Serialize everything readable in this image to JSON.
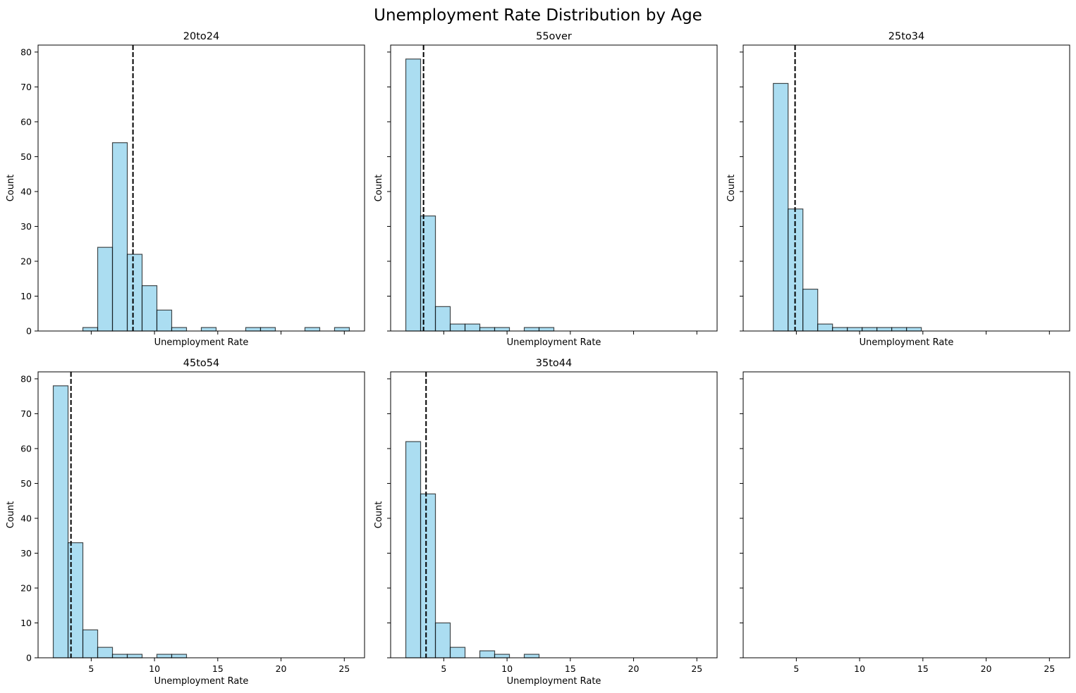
{
  "figure": {
    "title": "Unemployment Rate Distribution by Age"
  },
  "chart_data": [
    {
      "type": "histogram",
      "title": "20to24",
      "xlabel": "Unemployment Rate",
      "ylabel": "Count",
      "xlim": [
        0.8,
        26.6
      ],
      "ylim": [
        0,
        82
      ],
      "xticks": [
        5,
        10,
        15,
        20,
        25
      ],
      "show_xtick_labels": false,
      "yticks": [
        0,
        10,
        20,
        30,
        40,
        50,
        60,
        70,
        80
      ],
      "show_ytick_labels": true,
      "bin_start": 2.0,
      "bin_width": 1.17,
      "counts": [
        0,
        0,
        1,
        24,
        54,
        22,
        13,
        6,
        1,
        0,
        1,
        0,
        0,
        1,
        1,
        0,
        0,
        1,
        0,
        1
      ],
      "mean_line": 8.3,
      "bar_color": "#87CEEB",
      "edge_color": "#000000",
      "mean_color": "#000000"
    },
    {
      "type": "histogram",
      "title": "55over",
      "xlabel": "Unemployment Rate",
      "ylabel": "Count",
      "xlim": [
        0.8,
        26.6
      ],
      "ylim": [
        0,
        82
      ],
      "xticks": [
        5,
        10,
        15,
        20,
        25
      ],
      "show_xtick_labels": false,
      "yticks": [
        0,
        10,
        20,
        30,
        40,
        50,
        60,
        70,
        80
      ],
      "show_ytick_labels": false,
      "bin_start": 2.0,
      "bin_width": 1.17,
      "counts": [
        78,
        33,
        7,
        2,
        2,
        1,
        1,
        0,
        1,
        1
      ],
      "mean_line": 3.4,
      "bar_color": "#87CEEB",
      "edge_color": "#000000",
      "mean_color": "#000000"
    },
    {
      "type": "histogram",
      "title": "25to34",
      "xlabel": "Unemployment Rate",
      "ylabel": "Count",
      "xlim": [
        0.8,
        26.6
      ],
      "ylim": [
        0,
        82
      ],
      "xticks": [
        5,
        10,
        15,
        20,
        25
      ],
      "show_xtick_labels": false,
      "yticks": [
        0,
        10,
        20,
        30,
        40,
        50,
        60,
        70,
        80
      ],
      "show_ytick_labels": false,
      "bin_start": 3.18,
      "bin_width": 1.17,
      "counts": [
        71,
        35,
        12,
        2,
        1,
        1,
        1,
        1,
        1,
        1
      ],
      "mean_line": 4.9,
      "bar_color": "#87CEEB",
      "edge_color": "#000000",
      "mean_color": "#000000"
    },
    {
      "type": "histogram",
      "title": "45to54",
      "xlabel": "Unemployment Rate",
      "ylabel": "Count",
      "xlim": [
        0.8,
        26.6
      ],
      "ylim": [
        0,
        82
      ],
      "xticks": [
        5,
        10,
        15,
        20,
        25
      ],
      "show_xtick_labels": true,
      "yticks": [
        0,
        10,
        20,
        30,
        40,
        50,
        60,
        70,
        80
      ],
      "show_ytick_labels": true,
      "bin_start": 2.0,
      "bin_width": 1.17,
      "counts": [
        78,
        33,
        8,
        3,
        1,
        1,
        0,
        1,
        1
      ],
      "mean_line": 3.4,
      "bar_color": "#87CEEB",
      "edge_color": "#000000",
      "mean_color": "#000000"
    },
    {
      "type": "histogram",
      "title": "35to44",
      "xlabel": "Unemployment Rate",
      "ylabel": "Count",
      "xlim": [
        0.8,
        26.6
      ],
      "ylim": [
        0,
        82
      ],
      "xticks": [
        5,
        10,
        15,
        20,
        25
      ],
      "show_xtick_labels": true,
      "yticks": [
        0,
        10,
        20,
        30,
        40,
        50,
        60,
        70,
        80
      ],
      "show_ytick_labels": false,
      "bin_start": 2.0,
      "bin_width": 1.17,
      "counts": [
        62,
        47,
        10,
        3,
        0,
        2,
        1,
        0,
        1
      ],
      "mean_line": 3.6,
      "bar_color": "#87CEEB",
      "edge_color": "#000000",
      "mean_color": "#000000"
    },
    {
      "type": "histogram",
      "title": "",
      "xlabel": "",
      "ylabel": "",
      "xlim": [
        0.8,
        26.6
      ],
      "ylim": [
        0,
        82
      ],
      "xticks": [
        5,
        10,
        15,
        20,
        25
      ],
      "show_xtick_labels": true,
      "yticks": [
        0,
        10,
        20,
        30,
        40,
        50,
        60,
        70,
        80
      ],
      "show_ytick_labels": false,
      "bin_start": 2.0,
      "bin_width": 1.17,
      "counts": [],
      "mean_line": null,
      "bar_color": "#87CEEB",
      "edge_color": "#000000",
      "mean_color": "#000000"
    }
  ]
}
